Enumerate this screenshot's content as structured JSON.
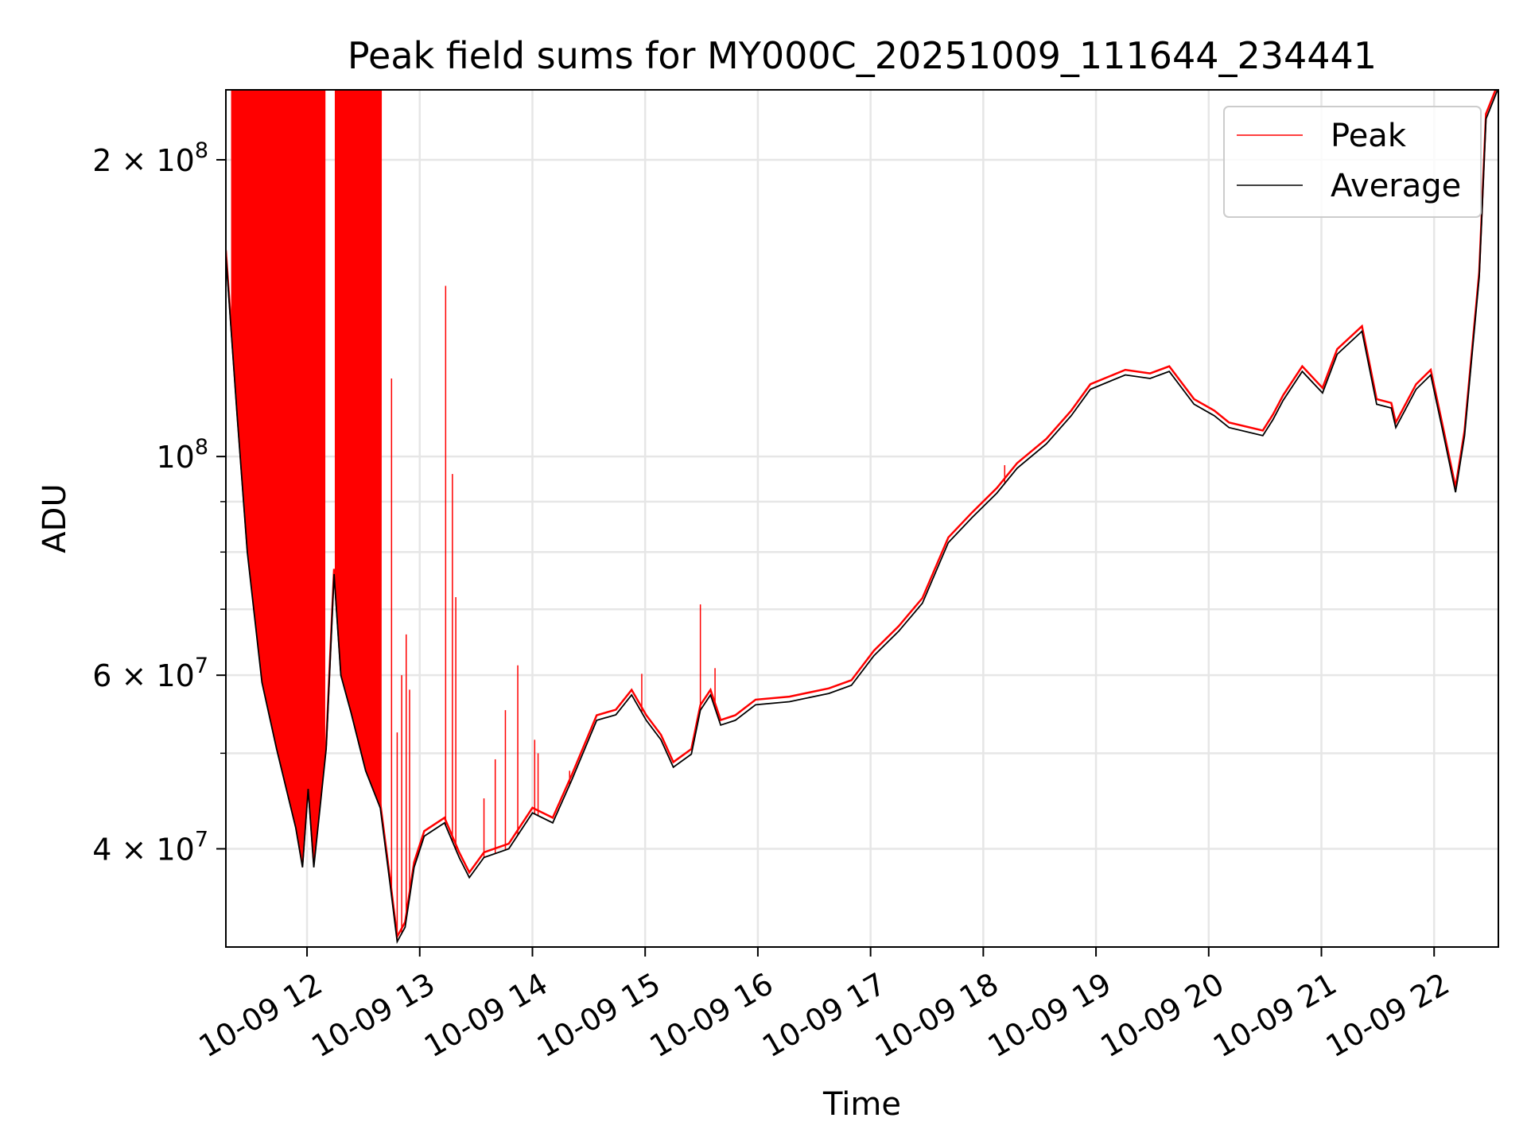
{
  "chart_data": {
    "type": "line",
    "title": "Peak field sums for MY000C_20251009_111644_234441",
    "xlabel": "Time",
    "ylabel": "ADU",
    "yscale": "log",
    "xlim_hours": [
      11.28,
      22.57
    ],
    "ylim": [
      31800000,
      235500000
    ],
    "grid": true,
    "legend_placement": "top-right",
    "x_ticks": [
      {
        "hour": 12,
        "label": "10-09 12"
      },
      {
        "hour": 13,
        "label": "10-09 13"
      },
      {
        "hour": 14,
        "label": "10-09 14"
      },
      {
        "hour": 15,
        "label": "10-09 15"
      },
      {
        "hour": 16,
        "label": "10-09 16"
      },
      {
        "hour": 17,
        "label": "10-09 17"
      },
      {
        "hour": 18,
        "label": "10-09 18"
      },
      {
        "hour": 19,
        "label": "10-09 19"
      },
      {
        "hour": 20,
        "label": "10-09 20"
      },
      {
        "hour": 21,
        "label": "10-09 21"
      },
      {
        "hour": 22,
        "label": "10-09 22"
      }
    ],
    "y_ticks": [
      {
        "value": 40000000,
        "mant": "4 × 10",
        "exp": "7"
      },
      {
        "value": 60000000,
        "mant": "6 × 10",
        "exp": "7"
      },
      {
        "value": 100000000,
        "mant": "10",
        "exp": "8"
      },
      {
        "value": 200000000,
        "mant": "2 × 10",
        "exp": "8"
      }
    ],
    "y_minor_grid": [
      40000000,
      50000000,
      60000000,
      70000000,
      80000000,
      90000000,
      100000000,
      200000000
    ],
    "series": [
      {
        "name": "Peak",
        "color": "#ff0000",
        "offset_ratio_over_average": 1.012,
        "spikes": [
          [
            12.75,
            120000000
          ],
          [
            12.8,
            52500000
          ],
          [
            12.84,
            60000000
          ],
          [
            12.88,
            66000000
          ],
          [
            12.91,
            58000000
          ],
          [
            13.23,
            149000000
          ],
          [
            13.29,
            96000000
          ],
          [
            13.32,
            72000000
          ],
          [
            13.57,
            45000000
          ],
          [
            13.67,
            49300000
          ],
          [
            13.76,
            55300000
          ],
          [
            13.87,
            61400000
          ],
          [
            14.02,
            51600000
          ],
          [
            14.05,
            50000000
          ],
          [
            14.33,
            48000000
          ],
          [
            14.97,
            60200000
          ],
          [
            15.49,
            70800000
          ],
          [
            15.62,
            61000000
          ],
          [
            18.19,
            98000000
          ]
        ],
        "dense_spike_ranges": [
          [
            11.33,
            12.16
          ],
          [
            12.25,
            12.66
          ]
        ],
        "dense_spike_value": 235500000
      },
      {
        "name": "Average",
        "color": "#000000",
        "points": [
          [
            11.28,
            160000000
          ],
          [
            11.38,
            110000000
          ],
          [
            11.47,
            80000000
          ],
          [
            11.6,
            59000000
          ],
          [
            11.73,
            50500000
          ],
          [
            11.9,
            42000000
          ],
          [
            11.96,
            38300000
          ],
          [
            12.01,
            46000000
          ],
          [
            12.06,
            38300000
          ],
          [
            12.17,
            50500000
          ],
          [
            12.24,
            76000000
          ],
          [
            12.3,
            60000000
          ],
          [
            12.39,
            55000000
          ],
          [
            12.52,
            48000000
          ],
          [
            12.65,
            44000000
          ],
          [
            12.74,
            36600000
          ],
          [
            12.8,
            32200000
          ],
          [
            12.87,
            33300000
          ],
          [
            12.95,
            38300000
          ],
          [
            13.04,
            41200000
          ],
          [
            13.22,
            42500000
          ],
          [
            13.35,
            39200000
          ],
          [
            13.44,
            37400000
          ],
          [
            13.57,
            39200000
          ],
          [
            13.79,
            40000000
          ],
          [
            14.0,
            43500000
          ],
          [
            14.18,
            42500000
          ],
          [
            14.35,
            47000000
          ],
          [
            14.57,
            54000000
          ],
          [
            14.74,
            54700000
          ],
          [
            14.88,
            57300000
          ],
          [
            15.01,
            54000000
          ],
          [
            15.14,
            51600000
          ],
          [
            15.25,
            48400000
          ],
          [
            15.41,
            49900000
          ],
          [
            15.49,
            55300000
          ],
          [
            15.58,
            57300000
          ],
          [
            15.67,
            53400000
          ],
          [
            15.8,
            54000000
          ],
          [
            15.98,
            56000000
          ],
          [
            16.28,
            56400000
          ],
          [
            16.63,
            57500000
          ],
          [
            16.83,
            58600000
          ],
          [
            17.03,
            62800000
          ],
          [
            17.25,
            66500000
          ],
          [
            17.46,
            71000000
          ],
          [
            17.69,
            81800000
          ],
          [
            17.9,
            86700000
          ],
          [
            18.12,
            91800000
          ],
          [
            18.3,
            97300000
          ],
          [
            18.56,
            103000000
          ],
          [
            18.78,
            110000000
          ],
          [
            18.95,
            117000000
          ],
          [
            19.26,
            121000000
          ],
          [
            19.48,
            120000000
          ],
          [
            19.65,
            122000000
          ],
          [
            19.87,
            113000000
          ],
          [
            20.05,
            110000000
          ],
          [
            20.18,
            107000000
          ],
          [
            20.48,
            105000000
          ],
          [
            20.57,
            109000000
          ],
          [
            20.66,
            114000000
          ],
          [
            20.83,
            122000000
          ],
          [
            21.01,
            116000000
          ],
          [
            21.14,
            127000000
          ],
          [
            21.36,
            134000000
          ],
          [
            21.49,
            113000000
          ],
          [
            21.62,
            112000000
          ],
          [
            21.66,
            107000000
          ],
          [
            21.84,
            117000000
          ],
          [
            21.97,
            121000000
          ],
          [
            22.07,
            107000000
          ],
          [
            22.19,
            92000000
          ],
          [
            22.27,
            105000000
          ],
          [
            22.4,
            152000000
          ],
          [
            22.46,
            220000000
          ],
          [
            22.56,
            235000000
          ]
        ]
      }
    ]
  }
}
